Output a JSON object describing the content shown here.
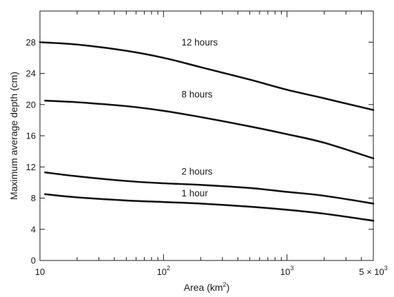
{
  "chart_data": {
    "type": "line",
    "xlabel": "Area (km",
    "xlabel_sup": "2",
    "xlabel_close": ")",
    "ylabel": "Maximum average depth (cm)",
    "xscale": "log",
    "xlim": [
      10,
      5000
    ],
    "ylim": [
      0,
      32
    ],
    "grid": false,
    "legend": "none",
    "y_ticks": [
      {
        "value": 0,
        "label": "0"
      },
      {
        "value": 4,
        "label": "4"
      },
      {
        "value": 8,
        "label": "8"
      },
      {
        "value": 12,
        "label": "12"
      },
      {
        "value": 16,
        "label": "16"
      },
      {
        "value": 20,
        "label": "20"
      },
      {
        "value": 24,
        "label": "24"
      },
      {
        "value": 28,
        "label": "28"
      }
    ],
    "x_ticks": [
      {
        "value": 10,
        "base": "10",
        "exp": ""
      },
      {
        "value": 100,
        "base": "10",
        "exp": "2"
      },
      {
        "value": 1000,
        "base": "10",
        "exp": "3"
      },
      {
        "value": 5000,
        "base": "5 × 10",
        "exp": "3"
      }
    ],
    "series": [
      {
        "name": "12 hours",
        "x": [
          10,
          20,
          50,
          100,
          200,
          500,
          1000,
          2000,
          5000
        ],
        "values": [
          28.0,
          27.7,
          26.9,
          26.0,
          24.8,
          23.2,
          21.9,
          20.8,
          19.3
        ]
      },
      {
        "name": "8 hours",
        "x": [
          11,
          20,
          50,
          100,
          200,
          500,
          1000,
          2000,
          5000
        ],
        "values": [
          20.5,
          20.3,
          19.8,
          19.2,
          18.4,
          17.2,
          16.2,
          15.1,
          13.1
        ]
      },
      {
        "name": "2 hours",
        "x": [
          11,
          20,
          50,
          100,
          200,
          500,
          1000,
          2000,
          5000
        ],
        "values": [
          11.3,
          10.8,
          10.2,
          9.9,
          9.7,
          9.3,
          8.8,
          8.3,
          7.3
        ]
      },
      {
        "name": "1 hour",
        "x": [
          11,
          20,
          50,
          100,
          200,
          500,
          1000,
          2000,
          5000
        ],
        "values": [
          8.5,
          8.1,
          7.7,
          7.5,
          7.3,
          6.9,
          6.5,
          6.0,
          5.1
        ]
      }
    ],
    "annotations": [
      {
        "text": "12 hours",
        "x": 140,
        "y": 27.6
      },
      {
        "text": "8 hours",
        "x": 140,
        "y": 20.9
      },
      {
        "text": "2 hours",
        "x": 140,
        "y": 11.0
      },
      {
        "text": "1 hour",
        "x": 140,
        "y": 8.2
      }
    ],
    "colors": {
      "line": "#111111",
      "axis": "#1a1a1a",
      "background": "#ffffff"
    }
  }
}
